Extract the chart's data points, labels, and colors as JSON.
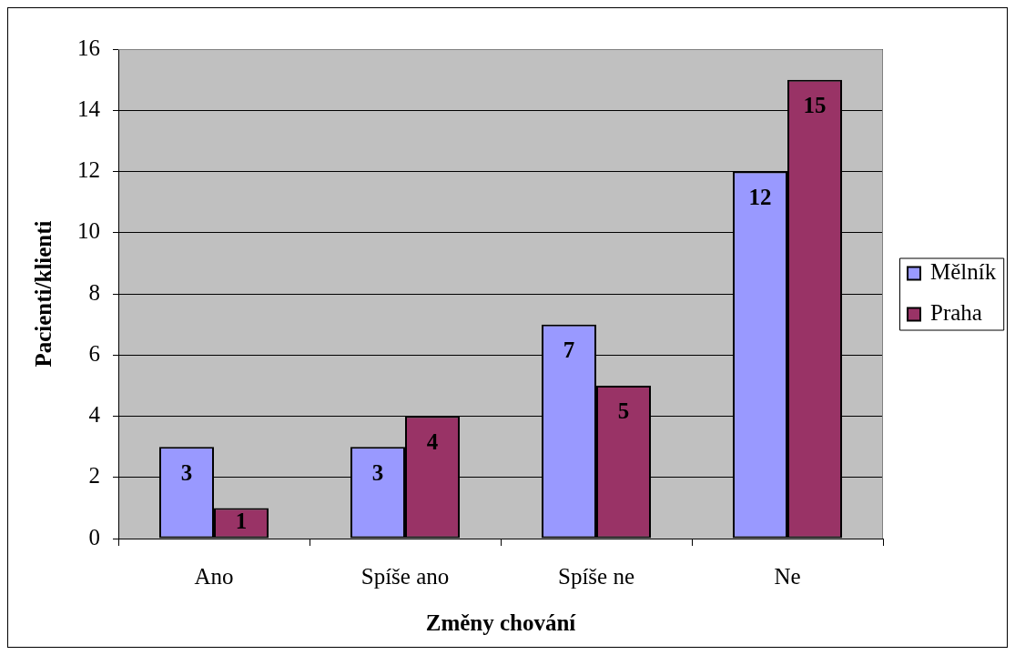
{
  "chart_data": {
    "type": "bar",
    "xlabel": "Změny chování",
    "ylabel": "Pacienti/klienti",
    "categories": [
      "Ano",
      "Spíše ano",
      "Spíše ne",
      "Ne"
    ],
    "series": [
      {
        "name": "Mělník",
        "color": "#9999ff",
        "values": [
          3,
          3,
          7,
          12
        ]
      },
      {
        "name": "Praha",
        "color": "#993366",
        "values": [
          1,
          4,
          5,
          15
        ]
      }
    ],
    "ylim": [
      0,
      16
    ],
    "yticks": [
      0,
      2,
      4,
      6,
      8,
      10,
      12,
      14,
      16
    ],
    "grid": "y",
    "legend": "right",
    "data_labels": true
  }
}
